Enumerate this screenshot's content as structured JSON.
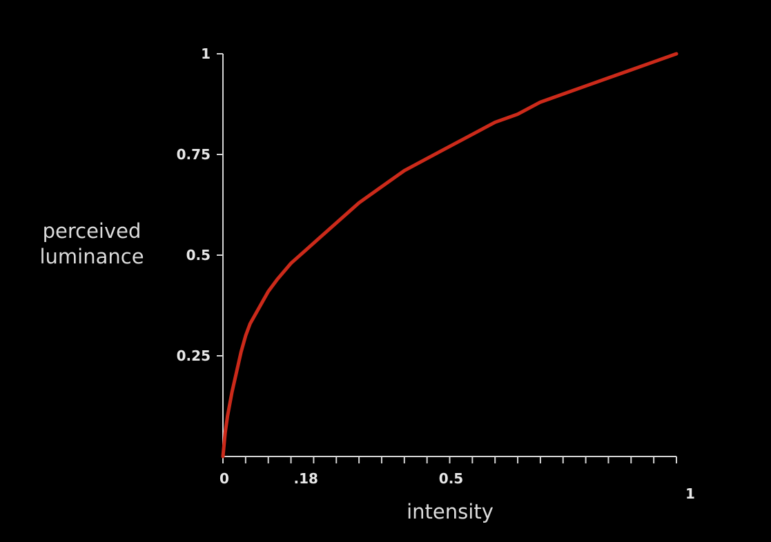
{
  "colors": {
    "background": "#000000",
    "axis": "#d6d6d6",
    "curve": "#cc2a1a",
    "text": "#e8e8e8"
  },
  "chart_data": {
    "type": "line",
    "title": "",
    "xlabel": "intensity",
    "ylabel_lines": [
      "perceived",
      "luminance"
    ],
    "xlim": [
      0,
      1
    ],
    "ylim": [
      0,
      1
    ],
    "grid": false,
    "x_ticks": [
      {
        "value": 0,
        "label": "0"
      },
      {
        "value": 0.18,
        "label": ".18"
      },
      {
        "value": 0.5,
        "label": "0.5"
      },
      {
        "value": 1,
        "label": "1"
      }
    ],
    "x_minor_tick_count": 20,
    "y_ticks": [
      {
        "value": 0.25,
        "label": "0.25"
      },
      {
        "value": 0.5,
        "label": "0.5"
      },
      {
        "value": 0.75,
        "label": "0.75"
      },
      {
        "value": 1,
        "label": "1"
      }
    ],
    "series": [
      {
        "x": [
          0,
          0.005,
          0.01,
          0.02,
          0.03,
          0.04,
          0.05,
          0.06,
          0.08,
          0.1,
          0.12,
          0.15,
          0.18,
          0.21,
          0.25,
          0.3,
          0.35,
          0.4,
          0.45,
          0.5,
          0.55,
          0.6,
          0.65,
          0.7,
          0.75,
          0.8,
          0.85,
          0.9,
          0.95,
          1.0
        ],
        "y": [
          0,
          0.06,
          0.1,
          0.16,
          0.21,
          0.26,
          0.3,
          0.33,
          0.37,
          0.41,
          0.44,
          0.48,
          0.51,
          0.54,
          0.58,
          0.63,
          0.67,
          0.71,
          0.74,
          0.77,
          0.8,
          0.83,
          0.85,
          0.88,
          0.9,
          0.92,
          0.94,
          0.96,
          0.98,
          1.0
        ],
        "color": "#cc2a1a"
      }
    ]
  }
}
